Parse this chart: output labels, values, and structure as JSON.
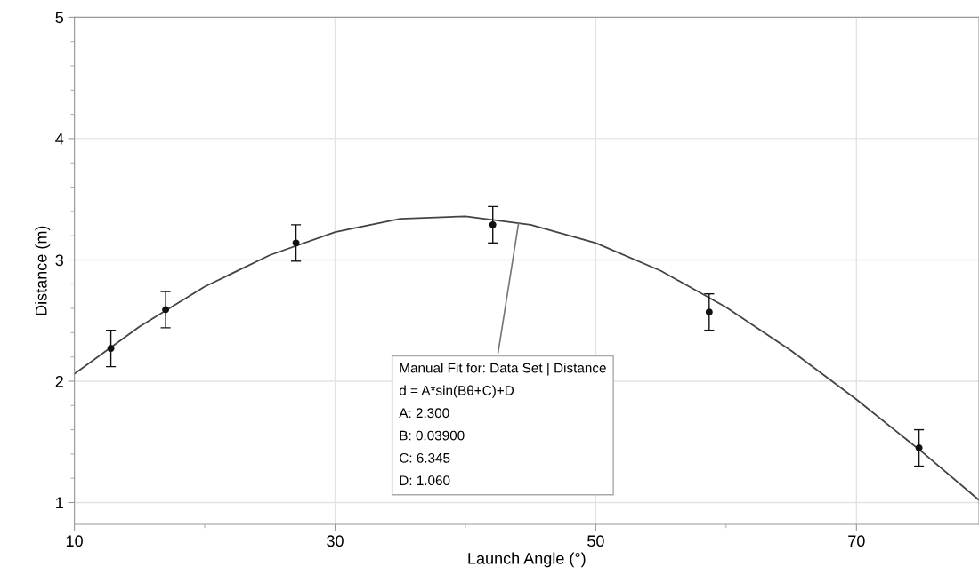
{
  "chart_data": {
    "type": "scatter",
    "xlabel": "Launch Angle (°)",
    "ylabel": "Distance (m)",
    "xlim": [
      10,
      79.4
    ],
    "ylim": [
      0.82,
      5
    ],
    "xticks": [
      10,
      {
        "value": 20,
        "label": null
      },
      30,
      {
        "value": 40,
        "label": null
      },
      50,
      {
        "value": 60,
        "label": null
      },
      70
    ],
    "yticks": [
      1,
      {
        "value": 1.2,
        "label": null
      },
      {
        "value": 1.4,
        "label": null
      },
      {
        "value": 1.6,
        "label": null
      },
      {
        "value": 1.8,
        "label": null
      },
      2,
      {
        "value": 2.2,
        "label": null
      },
      {
        "value": 2.4,
        "label": null
      },
      {
        "value": 2.6,
        "label": null
      },
      {
        "value": 2.8,
        "label": null
      },
      3,
      {
        "value": 3.2,
        "label": null
      },
      {
        "value": 3.4,
        "label": null
      },
      {
        "value": 3.6,
        "label": null
      },
      {
        "value": 3.8,
        "label": null
      },
      4,
      {
        "value": 4.2,
        "label": null
      },
      {
        "value": 4.4,
        "label": null
      },
      {
        "value": 4.6,
        "label": null
      },
      {
        "value": 4.8,
        "label": null
      },
      5
    ],
    "grid": true,
    "marker": "circle",
    "series": [
      {
        "color": "#111111",
        "x": [
          12.8,
          17.0,
          27.0,
          42.1,
          58.7,
          74.8
        ],
        "values": [
          2.27,
          2.59,
          3.14,
          3.29,
          2.57,
          1.45
        ],
        "errors": [
          0.15,
          0.15,
          0.15,
          0.15,
          0.15,
          0.15
        ]
      },
      {
        "type": "line",
        "color": "#444444",
        "marker": "none",
        "line_style": "solid",
        "x": [
          10,
          15,
          20,
          25,
          30,
          35,
          40,
          45,
          50,
          55,
          60,
          65,
          70,
          75,
          79.4
        ],
        "values": [
          2.06,
          2.45,
          2.78,
          3.04,
          3.23,
          3.34,
          3.36,
          3.29,
          3.14,
          2.91,
          2.61,
          2.25,
          1.85,
          1.42,
          1.02
        ]
      }
    ],
    "annotations": [
      {
        "text": "Manual Fit for: Data Set | Distance\nd = A*sin(Bθ+C)+D\nA: 2.300\nB: 0.03900\nC: 6.345\nD: 1.060",
        "x": 44.1,
        "y": 3.32
      }
    ]
  }
}
